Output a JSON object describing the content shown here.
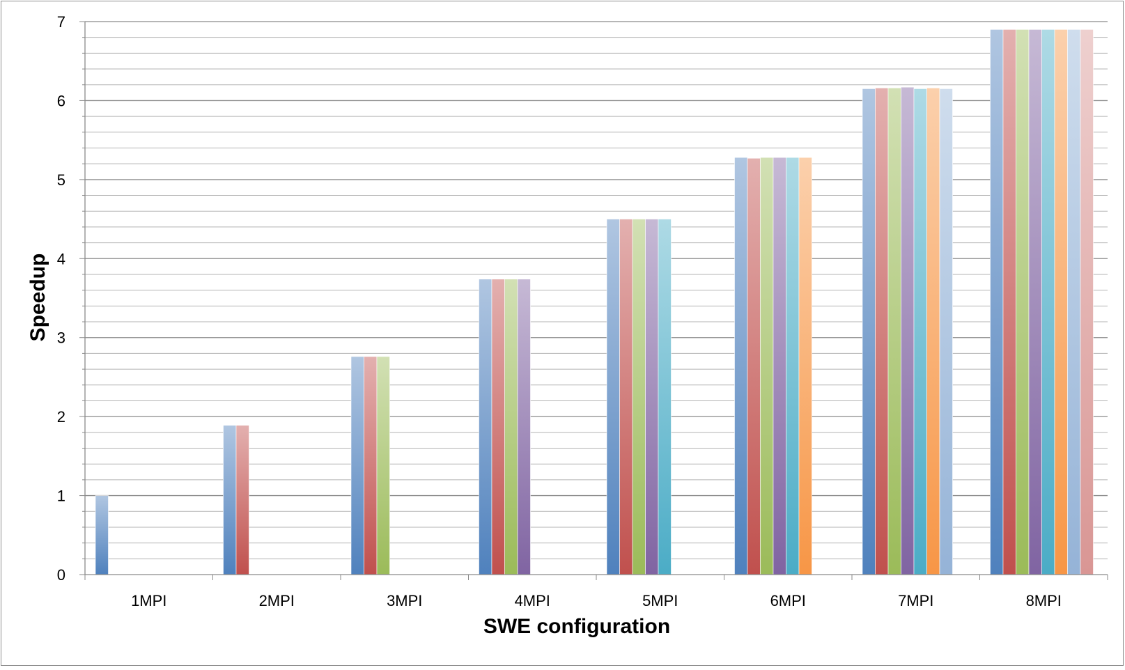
{
  "chart_data": {
    "type": "bar",
    "title": "",
    "xlabel": "SWE configuration",
    "ylabel": "Speedup",
    "ylim": [
      0,
      7
    ],
    "y_major_ticks": [
      "0",
      "1",
      "2",
      "3",
      "4",
      "5",
      "6",
      "7"
    ],
    "y_minor_step": 0.2,
    "grid": true,
    "legend": "none",
    "categories": [
      "1MPI",
      "2MPI",
      "3MPI",
      "4MPI",
      "5MPI",
      "6MPI",
      "7MPI",
      "8MPI"
    ],
    "series": [
      {
        "color": "#4f81bd",
        "values": [
          1.0,
          1.89,
          2.76,
          3.74,
          4.5,
          5.28,
          6.15,
          6.9
        ]
      },
      {
        "color": "#c0504d",
        "values": [
          null,
          1.89,
          2.76,
          3.74,
          4.5,
          5.27,
          6.16,
          6.9
        ]
      },
      {
        "color": "#9bbb59",
        "values": [
          null,
          null,
          2.76,
          3.74,
          4.5,
          5.28,
          6.16,
          6.9
        ]
      },
      {
        "color": "#8064a2",
        "values": [
          null,
          null,
          null,
          3.74,
          4.5,
          5.28,
          6.17,
          6.9
        ]
      },
      {
        "color": "#4bacc6",
        "values": [
          null,
          null,
          null,
          null,
          4.5,
          5.28,
          6.15,
          6.9
        ]
      },
      {
        "color": "#f79646",
        "values": [
          null,
          null,
          null,
          null,
          null,
          5.28,
          6.16,
          6.9
        ]
      },
      {
        "color": "#95b3d7",
        "values": [
          null,
          null,
          null,
          null,
          null,
          null,
          6.15,
          6.9
        ]
      },
      {
        "color": "#d99694",
        "values": [
          null,
          null,
          null,
          null,
          null,
          null,
          null,
          6.9
        ]
      }
    ]
  }
}
